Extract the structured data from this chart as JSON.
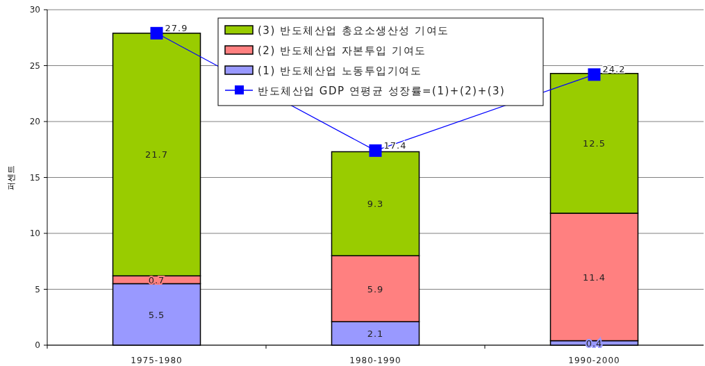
{
  "chart_data": {
    "type": "bar",
    "stacked": true,
    "ylabel": "퍼센트",
    "categories": [
      "1975-1980",
      "1980-1990",
      "1990-2000"
    ],
    "series": [
      {
        "name": "(1) 반도체산업 노동투입기여도",
        "color": "#9999ff",
        "values": [
          5.5,
          2.1,
          0.4
        ]
      },
      {
        "name": "(2) 반도체산업 자본투입 기여도",
        "color": "#ff8080",
        "values": [
          0.7,
          5.9,
          11.4
        ]
      },
      {
        "name": "(3) 반도체산업 총요소생산성 기여도",
        "color": "#99cc00",
        "values": [
          21.7,
          9.3,
          12.5
        ]
      },
      {
        "name": "반도체산업 GDP 연평균 성장률=(1)+(2)+(3)",
        "type": "line",
        "color": "#0000ff",
        "marker": "square",
        "values": [
          27.9,
          17.4,
          24.2
        ]
      }
    ],
    "ylim": [
      0,
      30
    ],
    "yticks": [
      0,
      5,
      10,
      15,
      20,
      25,
      30
    ],
    "grid": "y",
    "legend": "top",
    "data_labels": true
  }
}
